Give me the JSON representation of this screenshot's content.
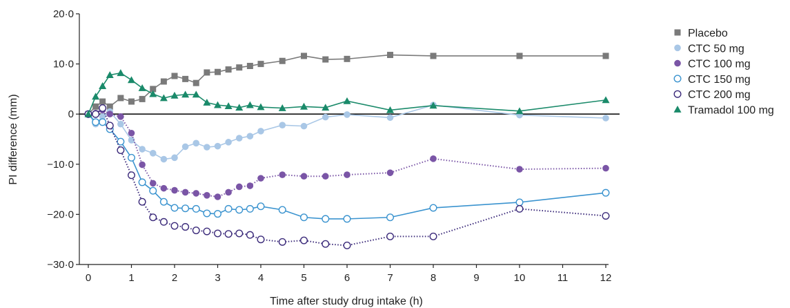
{
  "chart_data": {
    "type": "line",
    "title": "",
    "xlabel": "Time after study drug intake (h)",
    "ylabel": "PI difference (mm)",
    "xlim": [
      0,
      12
    ],
    "ylim": [
      -30,
      20
    ],
    "x_ticks": [
      0,
      1,
      2,
      3,
      4,
      5,
      6,
      7,
      8,
      9,
      10,
      11,
      12
    ],
    "x_tick_labels": [
      "0",
      "1",
      "2",
      "3",
      "4",
      "5",
      "6",
      "7",
      "8",
      "9",
      "10",
      "11",
      "12"
    ],
    "y_ticks": [
      20,
      10,
      0,
      -10,
      -20,
      -30
    ],
    "y_tick_labels": [
      "20·0",
      "10·0",
      "0",
      "−10·0",
      "−20·0",
      "−30·0"
    ],
    "grid": false,
    "legend_position": "right",
    "series": [
      {
        "name": "Placebo",
        "color": "#7a7a7a",
        "marker": "square",
        "line": "solid",
        "points": [
          [
            0,
            0
          ],
          [
            0.17,
            1.5
          ],
          [
            0.33,
            2.5
          ],
          [
            0.5,
            1.5
          ],
          [
            0.75,
            3.2
          ],
          [
            1,
            2.5
          ],
          [
            1.25,
            3
          ],
          [
            1.5,
            5
          ],
          [
            1.75,
            6.5
          ],
          [
            2,
            7.6
          ],
          [
            2.25,
            7
          ],
          [
            2.5,
            6.2
          ],
          [
            2.75,
            8.3
          ],
          [
            3,
            8.4
          ],
          [
            3.25,
            8.9
          ],
          [
            3.5,
            9.3
          ],
          [
            3.75,
            9.6
          ],
          [
            4,
            10
          ],
          [
            4.5,
            10.6
          ],
          [
            5,
            11.6
          ],
          [
            5.5,
            10.9
          ],
          [
            6,
            11
          ],
          [
            7,
            11.8
          ],
          [
            8,
            11.6
          ],
          [
            10,
            11.6
          ],
          [
            12,
            11.6
          ]
        ]
      },
      {
        "name": "CTC 50 mg",
        "color": "#a9c7e6",
        "marker": "circle-filled",
        "line": "solid",
        "points": [
          [
            0,
            0
          ],
          [
            0.17,
            -2
          ],
          [
            0.33,
            -0.5
          ],
          [
            0.5,
            0.5
          ],
          [
            0.75,
            -2
          ],
          [
            1,
            -5.2
          ],
          [
            1.25,
            -7
          ],
          [
            1.5,
            -7.8
          ],
          [
            1.75,
            -9
          ],
          [
            2,
            -8.7
          ],
          [
            2.25,
            -6.5
          ],
          [
            2.5,
            -5.8
          ],
          [
            2.75,
            -6.6
          ],
          [
            3,
            -6.4
          ],
          [
            3.25,
            -5.6
          ],
          [
            3.5,
            -4.8
          ],
          [
            3.75,
            -4.4
          ],
          [
            4,
            -3.4
          ],
          [
            4.5,
            -2.2
          ],
          [
            5,
            -2.4
          ],
          [
            5.5,
            -0.6
          ],
          [
            6,
            -0.1
          ],
          [
            7,
            -0.7
          ],
          [
            8,
            1.8
          ],
          [
            10,
            -0.2
          ],
          [
            12,
            -0.8
          ]
        ]
      },
      {
        "name": "CTC 100 mg",
        "color": "#7a55a6",
        "marker": "circle-filled",
        "line": "dotted",
        "points": [
          [
            0,
            0
          ],
          [
            0.17,
            0.2
          ],
          [
            0.33,
            0.8
          ],
          [
            0.5,
            0
          ],
          [
            0.75,
            -0.5
          ],
          [
            1,
            -3.8
          ],
          [
            1.25,
            -10.1
          ],
          [
            1.5,
            -13.8
          ],
          [
            1.75,
            -14.8
          ],
          [
            2,
            -15.2
          ],
          [
            2.25,
            -15.6
          ],
          [
            2.5,
            -15.8
          ],
          [
            2.75,
            -16.2
          ],
          [
            3,
            -16.5
          ],
          [
            3.25,
            -15.6
          ],
          [
            3.5,
            -14.5
          ],
          [
            3.75,
            -14.3
          ],
          [
            4,
            -12.8
          ],
          [
            4.5,
            -12.1
          ],
          [
            5,
            -12.4
          ],
          [
            5.5,
            -12.4
          ],
          [
            6,
            -12.1
          ],
          [
            7,
            -11.7
          ],
          [
            8,
            -8.9
          ],
          [
            10,
            -11
          ],
          [
            12,
            -10.8
          ]
        ]
      },
      {
        "name": "CTC 150 mg",
        "color": "#3a93cf",
        "marker": "circle-open",
        "line": "solid",
        "points": [
          [
            0,
            0
          ],
          [
            0.17,
            -1.6
          ],
          [
            0.33,
            -1.6
          ],
          [
            0.5,
            -3
          ],
          [
            0.75,
            -5.5
          ],
          [
            1,
            -8.7
          ],
          [
            1.25,
            -13.6
          ],
          [
            1.5,
            -15.3
          ],
          [
            1.75,
            -17.5
          ],
          [
            2,
            -18.7
          ],
          [
            2.25,
            -18.8
          ],
          [
            2.5,
            -18.9
          ],
          [
            2.75,
            -19.8
          ],
          [
            3,
            -19.9
          ],
          [
            3.25,
            -18.9
          ],
          [
            3.5,
            -19.1
          ],
          [
            3.75,
            -18.9
          ],
          [
            4,
            -18.4
          ],
          [
            4.5,
            -19.1
          ],
          [
            5,
            -20.6
          ],
          [
            5.5,
            -20.9
          ],
          [
            6,
            -20.9
          ],
          [
            7,
            -20.6
          ],
          [
            8,
            -18.7
          ],
          [
            10,
            -17.6
          ],
          [
            12,
            -15.7
          ]
        ]
      },
      {
        "name": "CTC 200 mg",
        "color": "#3b2a7a",
        "marker": "circle-open",
        "line": "dotted",
        "points": [
          [
            0,
            0
          ],
          [
            0.17,
            0
          ],
          [
            0.33,
            1.2
          ],
          [
            0.5,
            -2.3
          ],
          [
            0.75,
            -7.2
          ],
          [
            1,
            -12.2
          ],
          [
            1.25,
            -17.5
          ],
          [
            1.5,
            -20.6
          ],
          [
            1.75,
            -21.5
          ],
          [
            2,
            -22.3
          ],
          [
            2.25,
            -22.5
          ],
          [
            2.5,
            -23.2
          ],
          [
            2.75,
            -23.4
          ],
          [
            3,
            -23.8
          ],
          [
            3.25,
            -23.9
          ],
          [
            3.5,
            -23.8
          ],
          [
            3.75,
            -24.1
          ],
          [
            4,
            -25
          ],
          [
            4.5,
            -25.5
          ],
          [
            5,
            -25.2
          ],
          [
            5.5,
            -25.9
          ],
          [
            6,
            -26.2
          ],
          [
            7,
            -24.4
          ],
          [
            8,
            -24.4
          ],
          [
            10,
            -18.9
          ],
          [
            12,
            -20.3
          ]
        ]
      },
      {
        "name": "Tramadol 100 mg",
        "color": "#1a8a6a",
        "marker": "triangle",
        "line": "solid",
        "points": [
          [
            0,
            0
          ],
          [
            0.17,
            3.5
          ],
          [
            0.33,
            5.6
          ],
          [
            0.5,
            7.8
          ],
          [
            0.75,
            8.2
          ],
          [
            1,
            6.8
          ],
          [
            1.25,
            5.2
          ],
          [
            1.5,
            4
          ],
          [
            1.75,
            3.2
          ],
          [
            2,
            3.7
          ],
          [
            2.25,
            3.9
          ],
          [
            2.5,
            3.9
          ],
          [
            2.75,
            2.3
          ],
          [
            3,
            1.8
          ],
          [
            3.25,
            1.6
          ],
          [
            3.5,
            1.3
          ],
          [
            3.75,
            1.8
          ],
          [
            4,
            1.4
          ],
          [
            4.5,
            1.2
          ],
          [
            5,
            1.5
          ],
          [
            5.5,
            1.3
          ],
          [
            6,
            2.6
          ],
          [
            7,
            0.8
          ],
          [
            8,
            1.7
          ],
          [
            10,
            0.6
          ],
          [
            12,
            2.8
          ]
        ]
      }
    ]
  }
}
